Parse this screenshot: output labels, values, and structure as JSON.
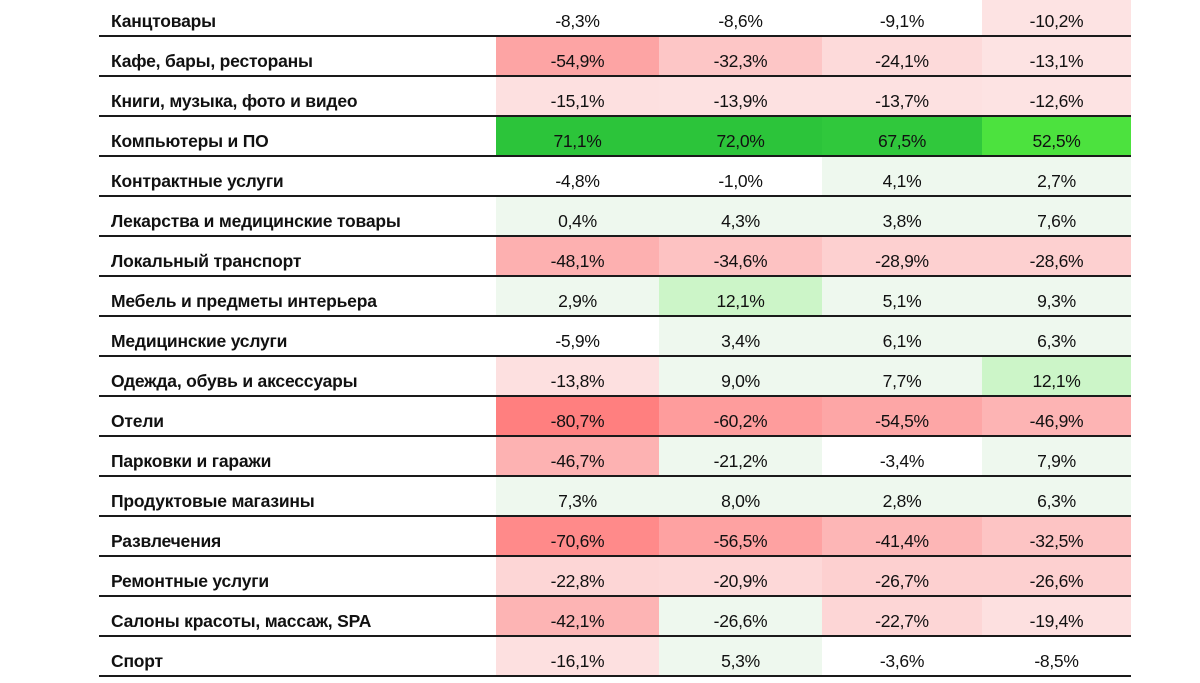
{
  "table": {
    "rows": [
      {
        "category": "Канцтовары",
        "values": [
          "-8,3%",
          "-8,6%",
          "-9,1%",
          "-10,2%"
        ],
        "colors": [
          "#ffffff",
          "#ffffff",
          "#ffffff",
          "#fde3e3"
        ]
      },
      {
        "category": "Кафе, бары, рестораны",
        "values": [
          "-54,9%",
          "-32,3%",
          "-24,1%",
          "-13,1%"
        ],
        "colors": [
          "#fda4a4",
          "#fdc6c6",
          "#fddada",
          "#fde3e3"
        ]
      },
      {
        "category": "Книги, музыка, фото и видео",
        "values": [
          "-15,1%",
          "-13,9%",
          "-13,7%",
          "-12,6%"
        ],
        "colors": [
          "#fde0e0",
          "#fde1e1",
          "#fde1e1",
          "#fde3e3"
        ]
      },
      {
        "category": "Компьютеры и ПО",
        "values": [
          "71,1%",
          "72,0%",
          "67,5%",
          "52,5%"
        ],
        "colors": [
          "#2cc43a",
          "#2cc43a",
          "#30c83c",
          "#4ce23e"
        ]
      },
      {
        "category": "Контрактные услуги",
        "values": [
          "-4,8%",
          "-1,0%",
          "4,1%",
          "2,7%"
        ],
        "colors": [
          "#ffffff",
          "#ffffff",
          "#eef8ee",
          "#eef8ee"
        ]
      },
      {
        "category": "Лекарства и медицинские товары",
        "values": [
          "0,4%",
          "4,3%",
          "3,8%",
          "7,6%"
        ],
        "colors": [
          "#eef8ee",
          "#eef8ee",
          "#eef8ee",
          "#eef8ee"
        ]
      },
      {
        "category": "Локальный транспорт",
        "values": [
          "-48,1%",
          "-34,6%",
          "-28,9%",
          "-28,6%"
        ],
        "colors": [
          "#fdb0b0",
          "#fdc2c2",
          "#fdd0d0",
          "#fdd0d0"
        ]
      },
      {
        "category": "Мебель и предметы интерьера",
        "values": [
          "2,9%",
          "12,1%",
          "5,1%",
          "9,3%"
        ],
        "colors": [
          "#eef8ee",
          "#ccf5c8",
          "#eef8ee",
          "#eef8ee"
        ]
      },
      {
        "category": "Медицинские услуги",
        "values": [
          "-5,9%",
          "3,4%",
          "6,1%",
          "6,3%"
        ],
        "colors": [
          "#ffffff",
          "#eef8ee",
          "#eef8ee",
          "#eef8ee"
        ]
      },
      {
        "category": "Одежда, обувь и аксессуары",
        "values": [
          "-13,8%",
          "9,0%",
          "7,7%",
          "12,1%"
        ],
        "colors": [
          "#fde0e0",
          "#eef8ee",
          "#eef8ee",
          "#ccf5c8"
        ]
      },
      {
        "category": "Отели",
        "values": [
          "-80,7%",
          "-60,2%",
          "-54,5%",
          "-46,9%"
        ],
        "colors": [
          "#ff7f7f",
          "#fe9c9c",
          "#fda6a6",
          "#fdb4b4"
        ]
      },
      {
        "category": "Парковки и гаражи",
        "values": [
          "-46,7%",
          "-21,2%",
          "-3,4%",
          "7,9%"
        ],
        "colors": [
          "#fdb2b2",
          "#eef8ee",
          "#ffffff",
          "#eef8ee"
        ]
      },
      {
        "category": "Продуктовые магазины",
        "values": [
          "7,3%",
          "8,0%",
          "2,8%",
          "6,3%"
        ],
        "colors": [
          "#eef8ee",
          "#eef8ee",
          "#eef8ee",
          "#eef8ee"
        ]
      },
      {
        "category": "Развлечения",
        "values": [
          "-70,6%",
          "-56,5%",
          "-41,4%",
          "-32,5%"
        ],
        "colors": [
          "#ff8a8a",
          "#fea2a2",
          "#fdb6b6",
          "#fdc4c4"
        ]
      },
      {
        "category": "Ремонтные услуги",
        "values": [
          "-22,8%",
          "-20,9%",
          "-26,7%",
          "-26,6%"
        ],
        "colors": [
          "#fdd6d6",
          "#fdd8d8",
          "#fdd0d0",
          "#fdd0d0"
        ]
      },
      {
        "category": "Салоны красоты, массаж, SPA",
        "values": [
          "-42,1%",
          "-26,6%",
          "-22,7%",
          "-19,4%"
        ],
        "colors": [
          "#fdb4b4",
          "#eef8ee",
          "#fdd6d6",
          "#fde0e0"
        ]
      },
      {
        "category": "Спорт",
        "values": [
          "-16,1%",
          "5,3%",
          "-3,6%",
          "-8,5%"
        ],
        "colors": [
          "#fde0e0",
          "#eef8ee",
          "#ffffff",
          "#ffffff"
        ]
      }
    ]
  }
}
